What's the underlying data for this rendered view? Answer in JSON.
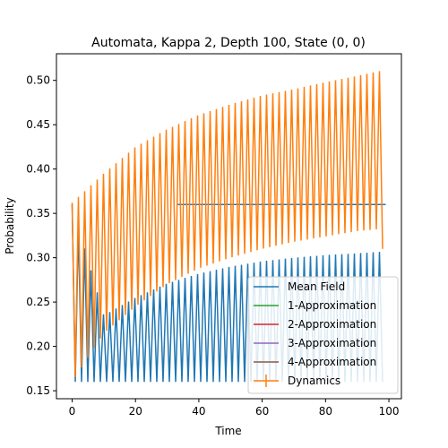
{
  "chart_data": {
    "type": "line",
    "title": "Automata, Kappa 2, Depth 100, State (0, 0)",
    "xlabel": "Time",
    "ylabel": "Probability",
    "xlim": [
      -4.95,
      103.95
    ],
    "ylim": [
      0.141,
      0.53
    ],
    "xticks": [
      0,
      20,
      40,
      60,
      80,
      100
    ],
    "yticks": [
      0.15,
      0.2,
      0.25,
      0.3,
      0.35,
      0.4,
      0.45,
      0.5
    ],
    "ytick_labels": [
      "0.15",
      "0.20",
      "0.25",
      "0.30",
      "0.35",
      "0.40",
      "0.45",
      "0.50"
    ],
    "legend_position": "lower right",
    "series": [
      {
        "name": "Mean Field",
        "color": "#1f77b4",
        "pattern": "oscillating, period 2 steps, 100 steps over time 0–99",
        "low_envelope": [
          [
            0,
            0.16
          ],
          [
            99,
            0.16
          ]
        ],
        "high_envelope": [
          [
            0,
            0.36
          ],
          [
            10,
            0.235
          ],
          [
            20,
            0.255
          ],
          [
            30,
            0.271
          ],
          [
            40,
            0.282
          ],
          [
            50,
            0.29
          ],
          [
            60,
            0.296
          ],
          [
            70,
            0.3
          ],
          [
            80,
            0.303
          ],
          [
            90,
            0.305
          ],
          [
            99,
            0.307
          ]
        ]
      },
      {
        "name": "1-Approximation",
        "color": "#2ca02c"
      },
      {
        "name": "2-Approximation",
        "color": "#d62728"
      },
      {
        "name": "3-Approximation",
        "color": "#9467bd"
      },
      {
        "name": "4-Approximation",
        "color": "#8c564b"
      },
      {
        "name": "Dynamics",
        "color": "#ff7f0e",
        "marker": "errorbar",
        "pattern": "oscillating, period 2 steps, 100 steps over time 0–99",
        "high_envelope": [
          [
            0,
            0.362
          ],
          [
            10,
            0.395
          ],
          [
            20,
            0.425
          ],
          [
            30,
            0.445
          ],
          [
            40,
            0.461
          ],
          [
            50,
            0.473
          ],
          [
            60,
            0.483
          ],
          [
            70,
            0.49
          ],
          [
            80,
            0.498
          ],
          [
            90,
            0.505
          ],
          [
            99,
            0.512
          ]
        ],
        "low_envelope": [
          [
            0,
            0.16
          ],
          [
            10,
            0.215
          ],
          [
            20,
            0.245
          ],
          [
            30,
            0.27
          ],
          [
            40,
            0.288
          ],
          [
            50,
            0.3
          ],
          [
            60,
            0.31
          ],
          [
            70,
            0.318
          ],
          [
            80,
            0.324
          ],
          [
            90,
            0.33
          ],
          [
            99,
            0.333
          ]
        ],
        "final_value": 0.31
      }
    ],
    "horizontal_band": {
      "y": 0.36,
      "x_range": [
        33,
        99
      ],
      "color": "#1f77b4"
    }
  }
}
